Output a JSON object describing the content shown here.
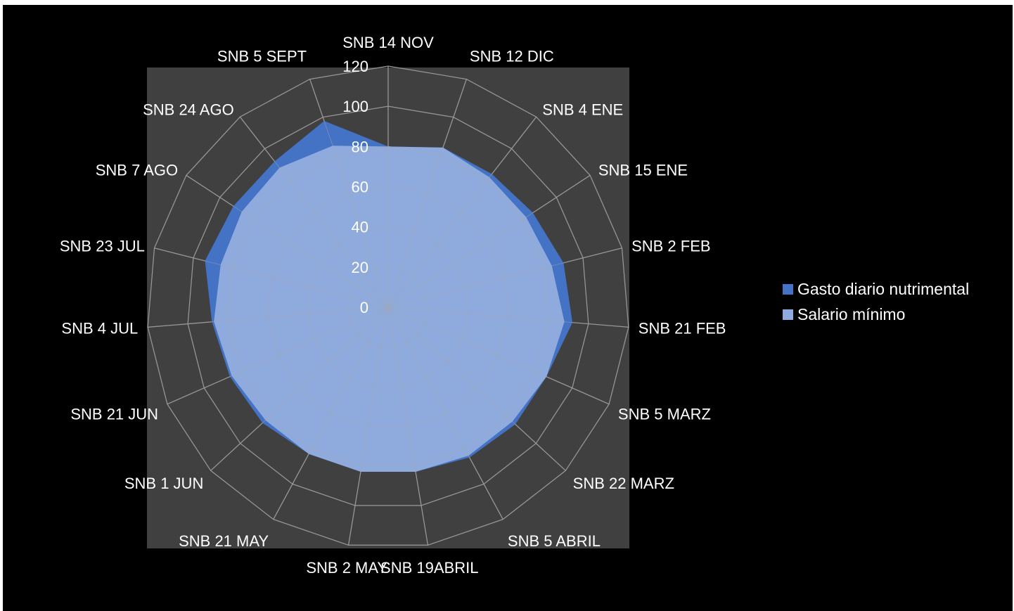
{
  "chart_data": {
    "type": "radar",
    "categories": [
      "SNB 14 NOV",
      "SNB 12 DIC",
      "SNB 4 ENE",
      "SNB 15 ENE",
      "SNB 2 FEB",
      "SNB 21 FEB",
      "SNB 5 MARZ",
      "SNB 22 MARZ",
      "SNB 5 ABRIL",
      "SNB 19ABRIL",
      "SNB 2 MAY",
      "SNB 21 MAY",
      "SNB 1 JUN",
      "SNB 21 JUN",
      "SNB 4 JUL",
      "SNB 23 JUL",
      "SNB 7 AGO",
      "SNB 24 AGO",
      "SNB 5 SEPT"
    ],
    "rlim": [
      0,
      120
    ],
    "ticks": [
      0,
      20,
      40,
      60,
      80,
      100,
      120
    ],
    "tick_labels": [
      "0",
      "20",
      "40",
      "60",
      "80",
      "100",
      "120"
    ],
    "series": [
      {
        "name": "Gasto diario nutrimental",
        "color": "#4472C4",
        "values": [
          80,
          84,
          84,
          86,
          90,
          92,
          86,
          86,
          85,
          83,
          83,
          83,
          85,
          86,
          88,
          94,
          92,
          92,
          98
        ]
      },
      {
        "name": "Salario mínimo",
        "color": "#8FAADC",
        "values": [
          80,
          84,
          82,
          82,
          84,
          88,
          86,
          84,
          84,
          83,
          83,
          83,
          83,
          85,
          87,
          86,
          87,
          88,
          85
        ]
      }
    ],
    "legend_position": "right",
    "grid": true
  }
}
